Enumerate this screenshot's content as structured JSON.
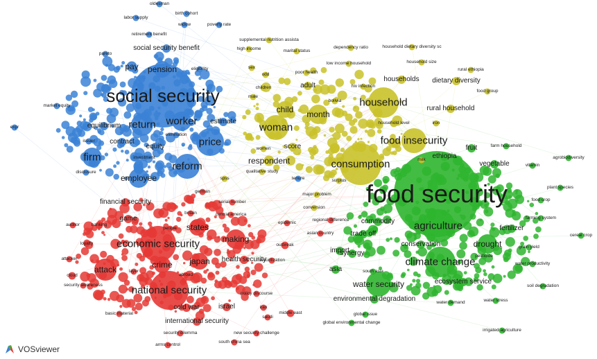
{
  "app": {
    "name": "VOSviewer"
  },
  "clusters": {
    "blue": {
      "color": "#3b82d6"
    },
    "red": {
      "color": "#e53935"
    },
    "yellow": {
      "color": "#c9c22a"
    },
    "green": {
      "color": "#2fb52f"
    }
  },
  "terms": [
    {
      "text": "social security",
      "c": "blue",
      "w": 3
    },
    {
      "text": "worker",
      "c": "blue",
      "w": 2
    },
    {
      "text": "return",
      "c": "blue",
      "w": 2
    },
    {
      "text": "price",
      "c": "blue",
      "w": 2
    },
    {
      "text": "reform",
      "c": "blue",
      "w": 2
    },
    {
      "text": "firm",
      "c": "blue",
      "w": 2
    },
    {
      "text": "employee",
      "c": "blue",
      "w": 1.5
    },
    {
      "text": "pension",
      "c": "blue",
      "w": 1.5
    },
    {
      "text": "pay",
      "c": "blue",
      "w": 1.5
    },
    {
      "text": "equilibrium",
      "c": "blue",
      "w": 1
    },
    {
      "text": "contract",
      "c": "blue",
      "w": 1
    },
    {
      "text": "equity",
      "c": "blue",
      "w": 1
    },
    {
      "text": "estimate",
      "c": "blue",
      "w": 1
    },
    {
      "text": "social security benefit",
      "c": "blue",
      "w": 1
    },
    {
      "text": "labor supply",
      "c": "blue",
      "w": 0.5
    },
    {
      "text": "birth cohort",
      "c": "blue",
      "w": 0.5
    },
    {
      "text": "oldesman",
      "c": "blue",
      "w": 0.5
    },
    {
      "text": "widow",
      "c": "blue",
      "w": 0.5
    },
    {
      "text": "poverty rate",
      "c": "blue",
      "w": 0.5
    },
    {
      "text": "retirement benefit",
      "c": "blue",
      "w": 0.5
    },
    {
      "text": "eligibility",
      "c": "blue",
      "w": 0.5
    },
    {
      "text": "pareto",
      "c": "blue",
      "w": 0.5
    },
    {
      "text": "market equity",
      "c": "blue",
      "w": 0.5
    },
    {
      "text": "expr",
      "c": "blue",
      "w": 0.5
    },
    {
      "text": "disclosure",
      "c": "blue",
      "w": 0.5
    },
    {
      "text": "issuer",
      "c": "blue",
      "w": 0.5
    },
    {
      "text": "investment",
      "c": "blue",
      "w": 0.5
    },
    {
      "text": "elimination",
      "c": "blue",
      "w": 0.5
    },
    {
      "text": "tenure",
      "c": "blue",
      "w": 0.5
    },
    {
      "text": "food security",
      "c": "green",
      "w": 4
    },
    {
      "text": "agriculture",
      "c": "green",
      "w": 2
    },
    {
      "text": "climate change",
      "c": "green",
      "w": 2
    },
    {
      "text": "water security",
      "c": "green",
      "w": 1.5
    },
    {
      "text": "drought",
      "c": "green",
      "w": 1.5
    },
    {
      "text": "conservation",
      "c": "green",
      "w": 1
    },
    {
      "text": "ecosystem service",
      "c": "green",
      "w": 1
    },
    {
      "text": "environmental degradation",
      "c": "green",
      "w": 1
    },
    {
      "text": "fertilizer",
      "c": "green",
      "w": 1
    },
    {
      "text": "farming system",
      "c": "green",
      "w": 0.5
    },
    {
      "text": "vegetable",
      "c": "green",
      "w": 1
    },
    {
      "text": "ethiopia",
      "c": "green",
      "w": 1
    },
    {
      "text": "fruit",
      "c": "green",
      "w": 1
    },
    {
      "text": "farm household",
      "c": "green",
      "w": 0.5
    },
    {
      "text": "vitamin",
      "c": "green",
      "w": 0.5
    },
    {
      "text": "agrobiodiversity",
      "c": "green",
      "w": 0.5
    },
    {
      "text": "plant species",
      "c": "green",
      "w": 0.5
    },
    {
      "text": "food crop",
      "c": "green",
      "w": 0.5
    },
    {
      "text": "cereal crop",
      "c": "green",
      "w": 0.5
    },
    {
      "text": "grain yield",
      "c": "green",
      "w": 0.5
    },
    {
      "text": "water productivity",
      "c": "green",
      "w": 0.5
    },
    {
      "text": "soil degradation",
      "c": "green",
      "w": 0.5
    },
    {
      "text": "water demand",
      "c": "green",
      "w": 0.5
    },
    {
      "text": "water stress",
      "c": "green",
      "w": 0.5
    },
    {
      "text": "irrigated agriculture",
      "c": "green",
      "w": 0.5
    },
    {
      "text": "commodity",
      "c": "green",
      "w": 1
    },
    {
      "text": "trade off",
      "c": "green",
      "w": 1
    },
    {
      "text": "synergy",
      "c": "green",
      "w": 1
    },
    {
      "text": "import",
      "c": "green",
      "w": 1
    },
    {
      "text": "asia",
      "c": "green",
      "w": 1
    },
    {
      "text": "south asia",
      "c": "green",
      "w": 0.5
    },
    {
      "text": "global environmental change",
      "c": "green",
      "w": 0.5
    },
    {
      "text": "global issue",
      "c": "green",
      "w": 0.5
    },
    {
      "text": "pesticide",
      "c": "green",
      "w": 0.5
    },
    {
      "text": "food insecurity",
      "c": "yellow",
      "w": 2
    },
    {
      "text": "household",
      "c": "yellow",
      "w": 2.2
    },
    {
      "text": "consumption",
      "c": "yellow",
      "w": 2
    },
    {
      "text": "woman",
      "c": "yellow",
      "w": 2
    },
    {
      "text": "child",
      "c": "yellow",
      "w": 1.5
    },
    {
      "text": "month",
      "c": "yellow",
      "w": 1.5
    },
    {
      "text": "respondent",
      "c": "yellow",
      "w": 1.5
    },
    {
      "text": "score",
      "c": "yellow",
      "w": 1
    },
    {
      "text": "household level",
      "c": "yellow",
      "w": 0.8
    },
    {
      "text": "rural household",
      "c": "yellow",
      "w": 1
    },
    {
      "text": "dietary diversity",
      "c": "yellow",
      "w": 1
    },
    {
      "text": "households",
      "c": "yellow",
      "w": 1
    },
    {
      "text": "household size",
      "c": "yellow",
      "w": 0.5
    },
    {
      "text": "rural ethiopia",
      "c": "yellow",
      "w": 0.5
    },
    {
      "text": "food group",
      "c": "yellow",
      "w": 0.5
    },
    {
      "text": "dependency ratio",
      "c": "yellow",
      "w": 0.5
    },
    {
      "text": "household dietary diversity sc",
      "c": "yellow",
      "w": 0.5
    },
    {
      "text": "low income household",
      "c": "yellow",
      "w": 0.5
    },
    {
      "text": "marital status",
      "c": "yellow",
      "w": 0.5
    },
    {
      "text": "supplemental nutrition assista",
      "c": "yellow",
      "w": 0.5
    },
    {
      "text": "high income",
      "c": "yellow",
      "w": 0.5
    },
    {
      "text": "poor health",
      "c": "yellow",
      "w": 0.5
    },
    {
      "text": "adult",
      "c": "yellow",
      "w": 1
    },
    {
      "text": "children",
      "c": "yellow",
      "w": 0.5
    },
    {
      "text": "male",
      "c": "yellow",
      "w": 0.5
    },
    {
      "text": "odd",
      "c": "yellow",
      "w": 0.5
    },
    {
      "text": "sex",
      "c": "yellow",
      "w": 0.5
    },
    {
      "text": "milk",
      "c": "yellow",
      "w": 0.5
    },
    {
      "text": "iron",
      "c": "yellow",
      "w": 0.5
    },
    {
      "text": "surplus",
      "c": "yellow",
      "w": 0.5
    },
    {
      "text": "qualitative study",
      "c": "yellow",
      "w": 0.5
    },
    {
      "text": "women",
      "c": "yellow",
      "w": 0.5
    },
    {
      "text": "hiv infection",
      "c": "yellow",
      "w": 0.5
    },
    {
      "text": "bolivia",
      "c": "yellow",
      "w": 0.5
    },
    {
      "text": "national security",
      "c": "red",
      "w": 2
    },
    {
      "text": "economic security",
      "c": "red",
      "w": 2
    },
    {
      "text": "attack",
      "c": "red",
      "w": 1.8
    },
    {
      "text": "japan",
      "c": "red",
      "w": 1.5
    },
    {
      "text": "crime",
      "c": "red",
      "w": 1.5
    },
    {
      "text": "states",
      "c": "red",
      "w": 1.5
    },
    {
      "text": "making",
      "c": "red",
      "w": 1.5
    },
    {
      "text": "health security",
      "c": "red",
      "w": 1
    },
    {
      "text": "international security",
      "c": "red",
      "w": 1
    },
    {
      "text": "cold war",
      "c": "red",
      "w": 1
    },
    {
      "text": "israel",
      "c": "red",
      "w": 1
    },
    {
      "text": "middle east",
      "c": "red",
      "w": 0.8
    },
    {
      "text": "financial security",
      "c": "red",
      "w": 1
    },
    {
      "text": "game",
      "c": "red",
      "w": 1
    },
    {
      "text": "banking",
      "c": "red",
      "w": 0.8
    },
    {
      "text": "outbreak",
      "c": "red",
      "w": 0.8
    },
    {
      "text": "cloud",
      "c": "red",
      "w": 0.8
    },
    {
      "text": "attacker",
      "c": "red",
      "w": 0.5
    },
    {
      "text": "security awareness",
      "c": "red",
      "w": 0.5
    },
    {
      "text": "security dilemma",
      "c": "red",
      "w": 0.5
    },
    {
      "text": "new security challenge",
      "c": "red",
      "w": 0.5
    },
    {
      "text": "south china sea",
      "c": "red",
      "w": 0.5
    },
    {
      "text": "arms control",
      "c": "red",
      "w": 0.5
    },
    {
      "text": "basic material",
      "c": "red",
      "w": 0.5
    },
    {
      "text": "policy discourse",
      "c": "red",
      "w": 0.5
    },
    {
      "text": "securitization",
      "c": "red",
      "w": 0.5
    },
    {
      "text": "regional difference",
      "c": "red",
      "w": 0.5
    },
    {
      "text": "asian country",
      "c": "red",
      "w": 0.5
    },
    {
      "text": "epidemic",
      "c": "red",
      "w": 0.5
    },
    {
      "text": "central america",
      "c": "red",
      "w": 0.5
    },
    {
      "text": "serial number",
      "c": "red",
      "w": 0.5
    },
    {
      "text": "german",
      "c": "red",
      "w": 0.5
    },
    {
      "text": "britain",
      "c": "red",
      "w": 0.5
    },
    {
      "text": "auditor",
      "c": "red",
      "w": 0.5
    },
    {
      "text": "loyalty",
      "c": "red",
      "w": 0.5
    },
    {
      "text": "layer",
      "c": "red",
      "w": 0.5
    },
    {
      "text": "people",
      "c": "red",
      "w": 0.5
    },
    {
      "text": "abroad",
      "c": "red",
      "w": 0.5
    },
    {
      "text": "major problem",
      "c": "yellow",
      "w": 0.5
    },
    {
      "text": "conversion",
      "c": "yellow",
      "w": 0.5
    },
    {
      "text": "spss",
      "c": "yellow",
      "w": 0.5
    },
    {
      "text": "saudi",
      "c": "red",
      "w": 0.5
    },
    {
      "text": "iran",
      "c": "red",
      "w": 0.5
    }
  ]
}
